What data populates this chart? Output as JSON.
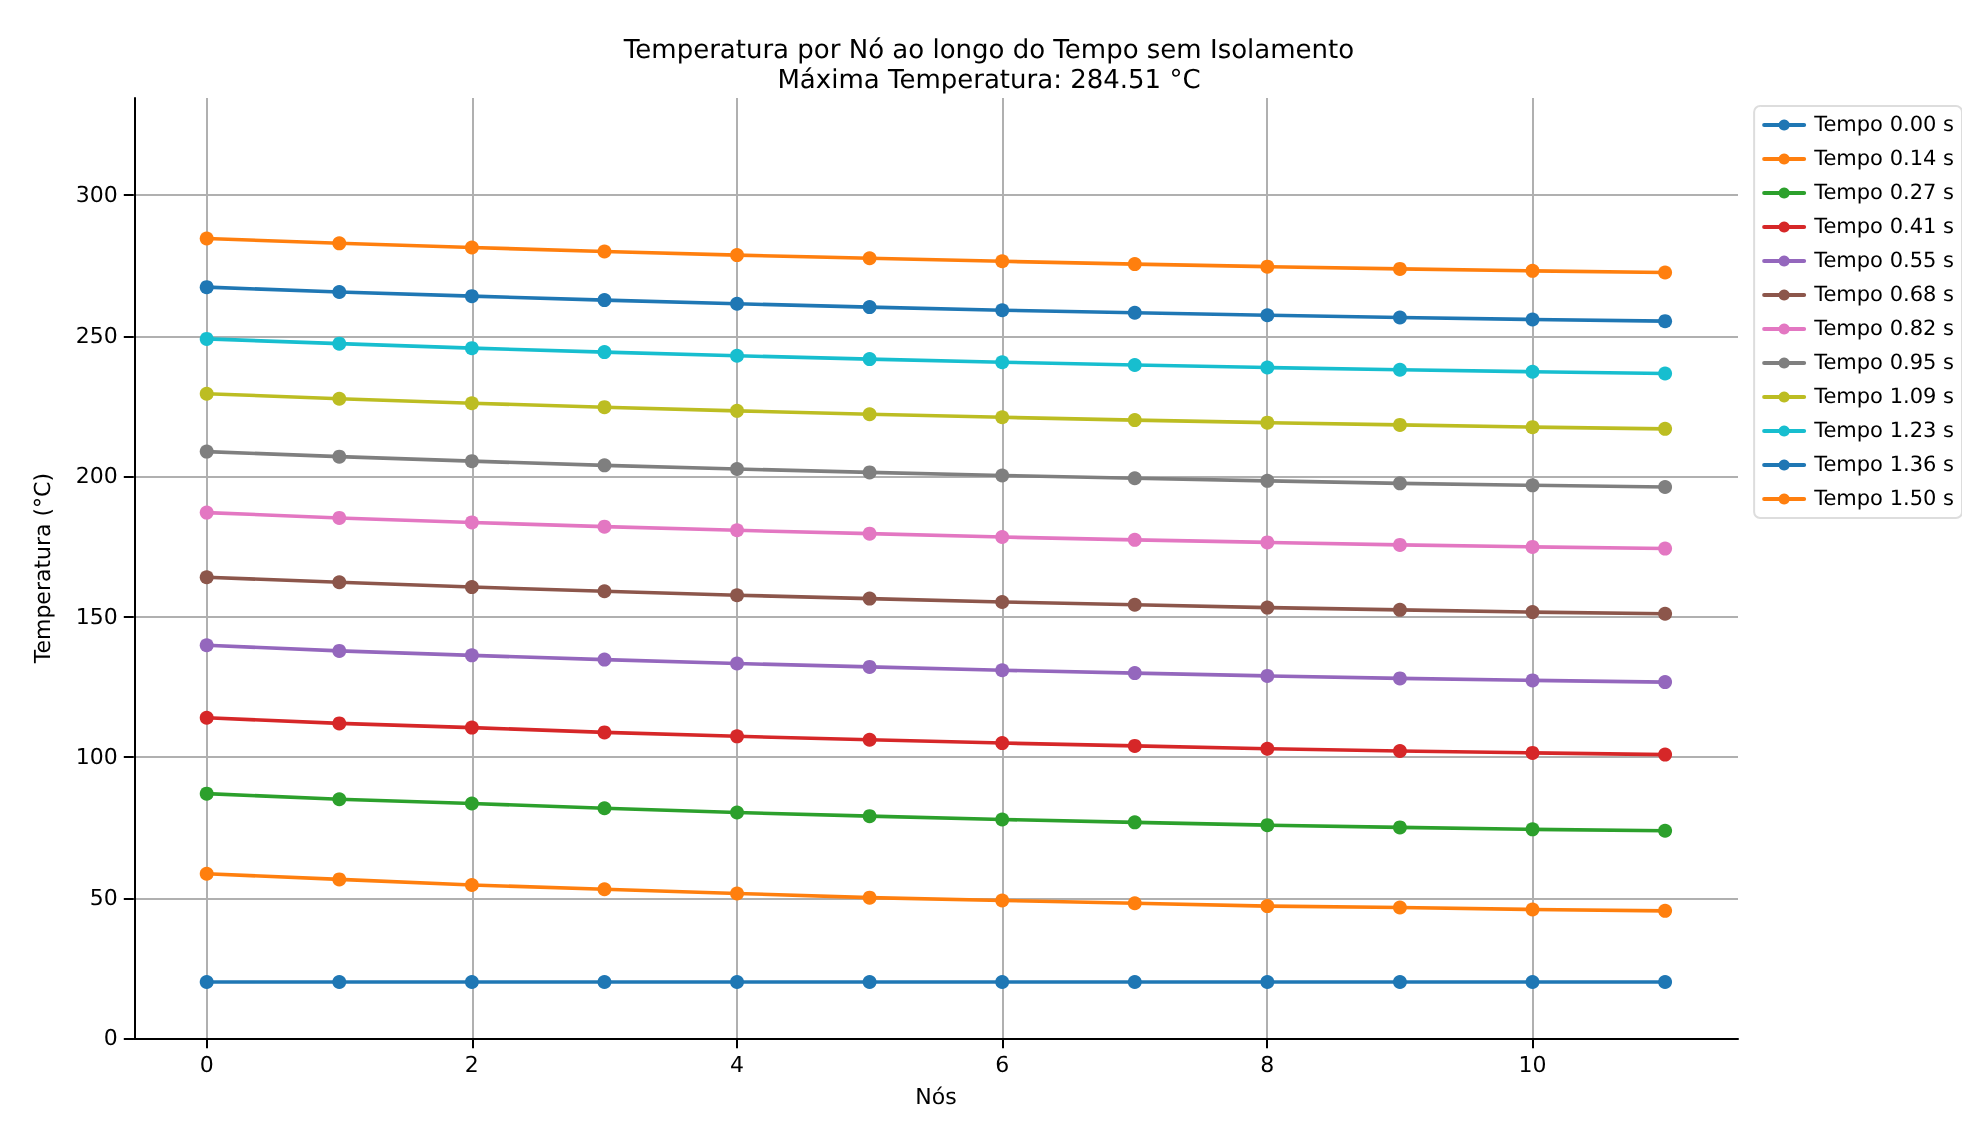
{
  "chart_data": {
    "type": "line",
    "title": "Temperatura por Nó ao longo do Tempo sem Isolamento",
    "subtitle": "Máxima Temperatura: 284.51 °C",
    "xlabel": "Nós",
    "ylabel": "Temperatura (°C)",
    "x": [
      0,
      1,
      2,
      3,
      4,
      5,
      6,
      7,
      8,
      9,
      10,
      11
    ],
    "series": [
      {
        "name": "Tempo 0.00 s",
        "color": "#1f77b4",
        "values": [
          20,
          20,
          20,
          20,
          20,
          20,
          20,
          20,
          20,
          20,
          20,
          20
        ]
      },
      {
        "name": "Tempo 0.14 s",
        "color": "#ff7f0e",
        "values": [
          58.5,
          56.5,
          54.5,
          53,
          51.5,
          50,
          49,
          48,
          47,
          46.5,
          45.8,
          45.3
        ]
      },
      {
        "name": "Tempo 0.27 s",
        "color": "#2ca02c",
        "values": [
          87,
          85,
          83.5,
          81.8,
          80.3,
          79,
          77.8,
          76.8,
          75.8,
          75,
          74.3,
          73.8
        ]
      },
      {
        "name": "Tempo 0.41 s",
        "color": "#d62728",
        "values": [
          114,
          112,
          110.5,
          108.8,
          107.4,
          106.2,
          105,
          104,
          103,
          102.2,
          101.5,
          100.9
        ]
      },
      {
        "name": "Tempo 0.55 s",
        "color": "#9467bd",
        "values": [
          139.8,
          137.8,
          136.2,
          134.7,
          133.3,
          132.1,
          130.9,
          129.9,
          128.9,
          128,
          127.3,
          126.7
        ]
      },
      {
        "name": "Tempo 0.68 s",
        "color": "#8c564b",
        "values": [
          164,
          162.2,
          160.5,
          159,
          157.6,
          156.4,
          155.2,
          154.2,
          153.2,
          152.4,
          151.6,
          151
        ]
      },
      {
        "name": "Tempo 0.82 s",
        "color": "#e377c2",
        "values": [
          187,
          185.1,
          183.5,
          182,
          180.7,
          179.5,
          178.3,
          177.3,
          176.4,
          175.5,
          174.8,
          174.2
        ]
      },
      {
        "name": "Tempo 0.95 s",
        "color": "#7f7f7f",
        "values": [
          208.7,
          206.9,
          205.3,
          203.8,
          202.5,
          201.3,
          200.2,
          199.2,
          198.3,
          197.4,
          196.7,
          196.1
        ]
      },
      {
        "name": "Tempo 1.09 s",
        "color": "#bcbd22",
        "values": [
          229.3,
          227.5,
          225.9,
          224.5,
          223.2,
          222,
          220.9,
          219.9,
          219,
          218.2,
          217.4,
          216.8
        ]
      },
      {
        "name": "Tempo 1.23 s",
        "color": "#17becf",
        "values": [
          248.8,
          247.1,
          245.5,
          244.1,
          242.8,
          241.6,
          240.5,
          239.5,
          238.6,
          237.8,
          237.1,
          236.5
        ]
      },
      {
        "name": "Tempo 1.36 s",
        "color": "#1f77b4",
        "values": [
          267.2,
          265.5,
          264,
          262.6,
          261.3,
          260.1,
          259,
          258.1,
          257.2,
          256.4,
          255.7,
          255.1
        ]
      },
      {
        "name": "Tempo 1.50 s",
        "color": "#ff7f0e",
        "values": [
          284.5,
          282.8,
          281.3,
          279.9,
          278.6,
          277.5,
          276.4,
          275.4,
          274.5,
          273.7,
          273,
          272.4
        ]
      }
    ],
    "xlim": [
      -0.55,
      11.55
    ],
    "xticks": [
      0,
      2,
      4,
      6,
      8,
      10
    ],
    "ylim": [
      0,
      334.5
    ],
    "yticks": [
      0,
      50,
      100,
      150,
      200,
      250,
      300
    ],
    "grid": true,
    "legend": "top right",
    "marker": "circle",
    "line_style": "solid"
  }
}
